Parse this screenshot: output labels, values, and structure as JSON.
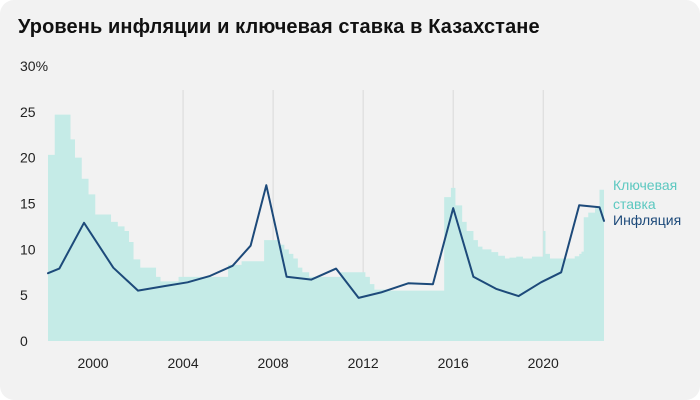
{
  "title": "Уровень инфляции и ключевая ставка в Казахстане",
  "colors": {
    "background": "#f2f2f2",
    "key_rate": "#c5ebe7",
    "key_rate_label": "#5cc8c0",
    "inflation": "#1d4a7a",
    "gridline": "#d9d9d9"
  },
  "chart_data": {
    "type": "line",
    "title": "Уровень инфляции и ключевая ставка в Казахстане",
    "x_range": [
      1998,
      2022.7
    ],
    "ylim": [
      0,
      30
    ],
    "y_ticks": [
      0,
      5,
      10,
      15,
      20,
      25,
      30
    ],
    "y_tick_labels": [
      "0",
      "5",
      "10",
      "15",
      "20",
      "25",
      "30%"
    ],
    "x_ticks": [
      2000,
      2004,
      2008,
      2012,
      2016,
      2020
    ],
    "x_tick_labels": [
      "2000",
      "2004",
      "2008",
      "2012",
      "2016",
      "2020"
    ],
    "vertical_gridlines_at": [
      2004,
      2008,
      2012,
      2016,
      2020
    ],
    "series": [
      {
        "name": "Ключевая ставка",
        "label_lines": [
          "Ключевая",
          "ставка"
        ],
        "kind": "step-area",
        "color": "#c5ebe7",
        "points": [
          [
            1998.0,
            20.3
          ],
          [
            1998.3,
            24.7
          ],
          [
            1999.0,
            22.0
          ],
          [
            1999.2,
            20.0
          ],
          [
            1999.5,
            17.7
          ],
          [
            1999.8,
            16.0
          ],
          [
            2000.1,
            13.8
          ],
          [
            2000.8,
            13.0
          ],
          [
            2001.1,
            12.5
          ],
          [
            2001.4,
            12.0
          ],
          [
            2001.6,
            10.8
          ],
          [
            2001.8,
            8.9
          ],
          [
            2002.1,
            8.0
          ],
          [
            2002.8,
            7.0
          ],
          [
            2003.0,
            6.5
          ],
          [
            2003.8,
            7.0
          ],
          [
            2006.0,
            8.3
          ],
          [
            2006.6,
            8.7
          ],
          [
            2007.6,
            11.0
          ],
          [
            2008.3,
            10.5
          ],
          [
            2008.5,
            10.0
          ],
          [
            2008.7,
            9.5
          ],
          [
            2008.9,
            9.0
          ],
          [
            2009.1,
            8.0
          ],
          [
            2009.3,
            7.5
          ],
          [
            2009.6,
            7.0
          ],
          [
            2011.0,
            7.5
          ],
          [
            2012.1,
            7.0
          ],
          [
            2012.3,
            6.2
          ],
          [
            2012.5,
            5.6
          ],
          [
            2013.2,
            5.5
          ],
          [
            2015.6,
            15.7
          ],
          [
            2015.9,
            16.7
          ],
          [
            2016.1,
            14.8
          ],
          [
            2016.4,
            13.0
          ],
          [
            2016.6,
            12.0
          ],
          [
            2016.9,
            11.0
          ],
          [
            2017.1,
            10.3
          ],
          [
            2017.3,
            10.0
          ],
          [
            2017.7,
            9.7
          ],
          [
            2018.0,
            9.3
          ],
          [
            2018.3,
            9.0
          ],
          [
            2018.5,
            9.1
          ],
          [
            2018.8,
            9.2
          ],
          [
            2019.1,
            9.0
          ],
          [
            2019.3,
            9.0
          ],
          [
            2019.5,
            9.2
          ],
          [
            2019.8,
            9.2
          ],
          [
            2020.0,
            12.0
          ],
          [
            2020.1,
            9.5
          ],
          [
            2020.3,
            9.0
          ],
          [
            2021.0,
            9.0
          ],
          [
            2021.4,
            9.25
          ],
          [
            2021.6,
            9.5
          ],
          [
            2021.7,
            9.75
          ],
          [
            2021.8,
            13.5
          ],
          [
            2022.0,
            14.0
          ],
          [
            2022.3,
            14.5
          ],
          [
            2022.5,
            16.5
          ],
          [
            2022.7,
            16.5
          ]
        ]
      },
      {
        "name": "Инфляция",
        "label_lines": [
          "Инфляция"
        ],
        "kind": "line",
        "color": "#1d4a7a",
        "points": [
          [
            1998.0,
            7.4
          ],
          [
            1998.5,
            7.9
          ],
          [
            1999.6,
            12.9
          ],
          [
            2000.9,
            8.0
          ],
          [
            2002.0,
            5.5
          ],
          [
            2003.2,
            6.0
          ],
          [
            2004.2,
            6.4
          ],
          [
            2005.2,
            7.1
          ],
          [
            2006.2,
            8.2
          ],
          [
            2007.0,
            10.4
          ],
          [
            2007.7,
            17.0
          ],
          [
            2008.6,
            7.0
          ],
          [
            2009.7,
            6.7
          ],
          [
            2010.8,
            7.9
          ],
          [
            2011.8,
            4.7
          ],
          [
            2012.8,
            5.3
          ],
          [
            2014.0,
            6.3
          ],
          [
            2015.1,
            6.2
          ],
          [
            2016.0,
            14.5
          ],
          [
            2016.9,
            7.0
          ],
          [
            2017.9,
            5.7
          ],
          [
            2018.9,
            4.9
          ],
          [
            2019.9,
            6.4
          ],
          [
            2020.8,
            7.5
          ],
          [
            2021.6,
            14.8
          ],
          [
            2022.5,
            14.6
          ],
          [
            2022.7,
            13.1
          ]
        ]
      }
    ],
    "legend_placement": "right, next to series ends",
    "grid": "vertical lines only"
  }
}
